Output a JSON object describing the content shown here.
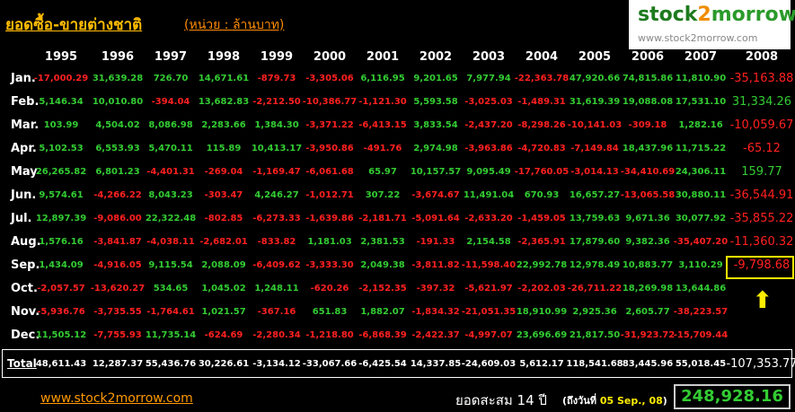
{
  "header": {
    "title": "ยอดซื้อ-ขายต่างชาติ",
    "unit": "(หน่วย : ล้านบาท)"
  },
  "logo": {
    "brand": [
      "stock",
      "2",
      "morrow"
    ],
    "url": "www.stock2morrow.com"
  },
  "table": {
    "columns": [
      "1995",
      "1996",
      "1997",
      "1998",
      "1999",
      "2000",
      "2001",
      "2002",
      "2003",
      "2004",
      "2005",
      "2006",
      "2007",
      "2008"
    ],
    "rows": [
      {
        "label": "Jan.",
        "cells": [
          "-17,000.29",
          "31,639.28",
          "726.70",
          "14,671.61",
          "-879.73",
          "-3,305.06",
          "6,116.95",
          "9,201.65",
          "7,977.94",
          "-22,363.78",
          "47,920.66",
          "74,815.86",
          "11,810.90",
          "-35,163.88"
        ]
      },
      {
        "label": "Feb.",
        "cells": [
          "5,146.34",
          "10,010.80",
          "-394.04",
          "13,682.83",
          "-2,212.50",
          "-10,386.77",
          "-1,121.30",
          "5,593.58",
          "-3,025.03",
          "-1,489.31",
          "31,619.39",
          "19,088.08",
          "17,531.10",
          "31,334.26"
        ]
      },
      {
        "label": "Mar.",
        "cells": [
          "103.99",
          "4,504.02",
          "8,086.98",
          "2,283.66",
          "1,384.30",
          "-3,371.22",
          "-6,413.15",
          "3,833.54",
          "-2,437.20",
          "-8,298.26",
          "-10,141.03",
          "-309.18",
          "1,282.16",
          "-10,059.67"
        ]
      },
      {
        "label": "Apr.",
        "cells": [
          "5,102.53",
          "6,553.93",
          "5,470.11",
          "115.89",
          "10,413.17",
          "-3,950.86",
          "-491.76",
          "2,974.98",
          "-3,963.86",
          "-4,720.83",
          "-7,149.84",
          "18,437.96",
          "11,715.22",
          "-65.12"
        ]
      },
      {
        "label": "May",
        "cells": [
          "26,265.82",
          "6,801.23",
          "-4,401.31",
          "-269.04",
          "-1,169.47",
          "-6,061.68",
          "65.97",
          "10,157.57",
          "9,095.49",
          "-17,760.05",
          "-3,014.13",
          "-34,410.69",
          "24,306.11",
          "159.77"
        ]
      },
      {
        "label": "Jun.",
        "cells": [
          "9,574.61",
          "-4,266.22",
          "8,043.23",
          "-303.47",
          "4,246.27",
          "-1,012.71",
          "307.22",
          "-3,674.67",
          "11,491.04",
          "670.93",
          "16,657.27",
          "-13,065.58",
          "30,880.11",
          "-36,544.91"
        ]
      },
      {
        "label": "Jul.",
        "cells": [
          "12,897.39",
          "-9,086.00",
          "22,322.48",
          "-802.85",
          "-6,273.33",
          "-1,639.86",
          "-2,181.71",
          "-5,091.64",
          "-2,633.20",
          "-1,459.05",
          "13,759.63",
          "9,671.36",
          "30,077.92",
          "-35,855.22"
        ]
      },
      {
        "label": "Aug.",
        "cells": [
          "1,576.16",
          "-3,841.87",
          "-4,038.11",
          "-2,682.01",
          "-833.82",
          "1,181.03",
          "2,381.53",
          "-191.33",
          "2,154.58",
          "-2,365.91",
          "17,879.60",
          "9,382.36",
          "-35,407.20",
          "-11,360.32"
        ]
      },
      {
        "label": "Sep.",
        "cells": [
          "1,434.09",
          "-4,916.05",
          "9,115.54",
          "2,088.09",
          "-6,409.62",
          "-3,333.30",
          "2,049.38",
          "-3,811.82",
          "-11,598.40",
          "22,992.78",
          "12,978.49",
          "10,883.77",
          "3,110.29",
          "-9,798.68"
        ]
      },
      {
        "label": "Oct.",
        "cells": [
          "-2,057.57",
          "-13,620.27",
          "534.65",
          "1,045.02",
          "1,248.11",
          "-620.26",
          "-2,152.35",
          "-397.32",
          "-5,621.97",
          "-2,202.03",
          "-26,711.22",
          "18,269.98",
          "13,644.86"
        ]
      },
      {
        "label": "Nov.",
        "cells": [
          "-5,936.76",
          "-3,735.55",
          "-1,764.61",
          "1,021.57",
          "-367.16",
          "651.83",
          "1,882.07",
          "-1,834.32",
          "-21,051.35",
          "18,910.99",
          "2,925.36",
          "2,605.77",
          "-38,223.57"
        ]
      },
      {
        "label": "Dec.",
        "cells": [
          "11,505.12",
          "-7,755.93",
          "11,735.14",
          "-624.69",
          "-2,280.34",
          "-1,218.80",
          "-6,868.39",
          "-2,422.37",
          "-4,997.07",
          "23,696.69",
          "21,817.50",
          "-31,923.72",
          "-15,709.44"
        ]
      }
    ],
    "total": {
      "label": "Total",
      "cells": [
        "48,611.43",
        "12,287.37",
        "55,436.76",
        "30,226.61",
        "-3,134.12",
        "-33,067.66",
        "-6,425.54",
        "14,337.85",
        "-24,609.03",
        "5,612.17",
        "118,541.68",
        "83,445.96",
        "55,018.45",
        "-107,353.77"
      ]
    }
  },
  "footer": {
    "url": "www.stock2morrow.com",
    "caption": "ยอดสะสม 14 ปี",
    "date_open": "(ถึงวันที่",
    "date": "05 Sep., 08",
    "date_close": ")",
    "sum": "248,928.16"
  }
}
